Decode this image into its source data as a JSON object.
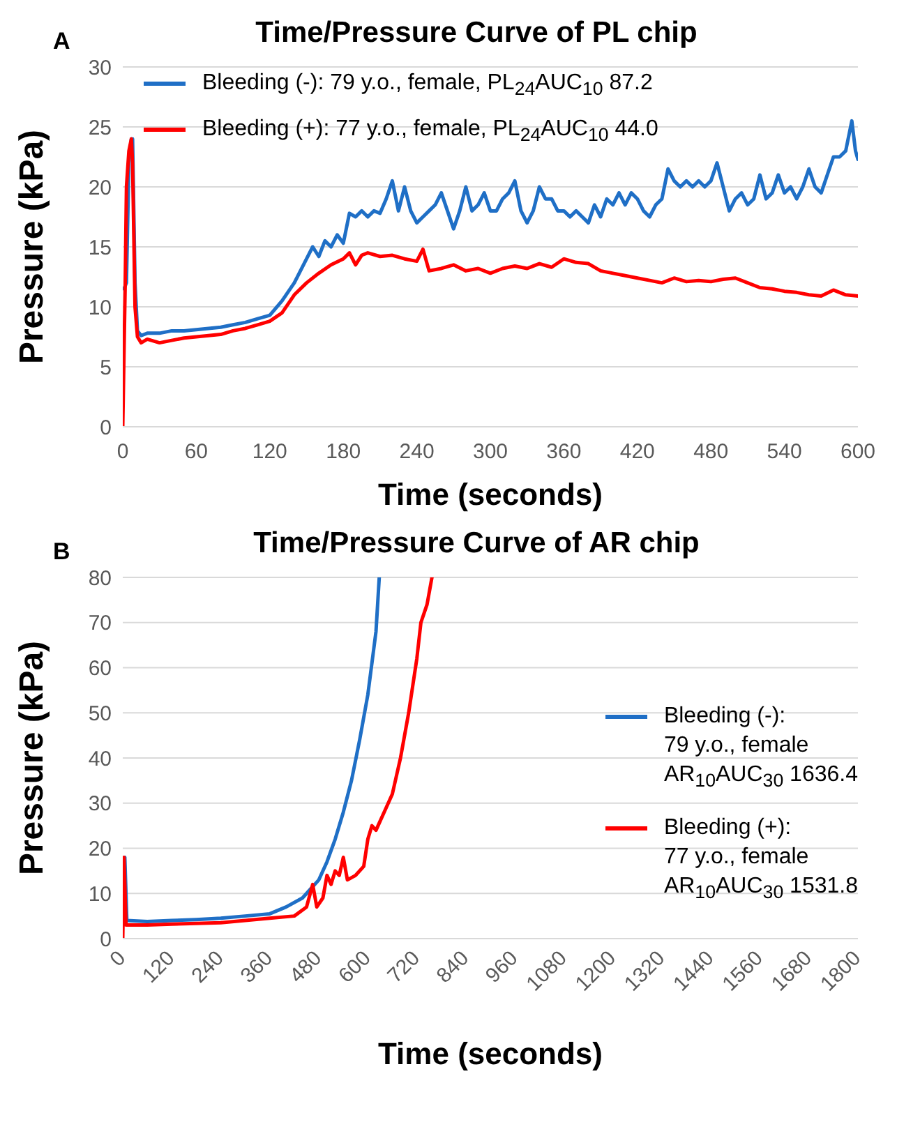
{
  "chart_data": [
    {
      "type": "line",
      "title": "Time/Pressure Curve of PL chip",
      "xlabel": "Time (seconds)",
      "ylabel": "Pressure (kPa)",
      "annotations": [
        "A"
      ],
      "xlim": [
        0,
        600
      ],
      "xticks": [
        0,
        60,
        120,
        180,
        240,
        300,
        360,
        420,
        480,
        540,
        600
      ],
      "ylim": [
        0,
        30
      ],
      "yticks": [
        0,
        5,
        10,
        15,
        20,
        25,
        30
      ],
      "grid": "y",
      "legend": "top",
      "series": [
        {
          "name": "Bleeding (-): 79 y.o., female, PL$_{24}$AUC$_{10}$ 87.2",
          "color": "#1f6fc6",
          "x": [
            1,
            3,
            5,
            7,
            8,
            10,
            12,
            15,
            20,
            30,
            40,
            50,
            60,
            70,
            80,
            90,
            100,
            110,
            120,
            130,
            140,
            150,
            155,
            160,
            165,
            170,
            175,
            180,
            185,
            190,
            195,
            200,
            205,
            210,
            215,
            220,
            225,
            230,
            235,
            240,
            245,
            250,
            255,
            260,
            265,
            270,
            275,
            280,
            285,
            290,
            295,
            300,
            305,
            310,
            315,
            320,
            325,
            330,
            335,
            340,
            345,
            350,
            355,
            360,
            365,
            370,
            375,
            380,
            385,
            390,
            395,
            400,
            405,
            410,
            415,
            420,
            425,
            430,
            435,
            440,
            445,
            450,
            455,
            460,
            465,
            470,
            475,
            480,
            485,
            490,
            495,
            500,
            505,
            510,
            515,
            520,
            525,
            530,
            535,
            540,
            545,
            550,
            555,
            560,
            565,
            570,
            575,
            580,
            585,
            590,
            595,
            598,
            600
          ],
          "values": [
            11.5,
            12,
            22,
            24,
            24,
            12,
            8,
            7.6,
            7.8,
            7.8,
            8,
            8,
            8.1,
            8.2,
            8.3,
            8.5,
            8.7,
            9,
            9.3,
            10.5,
            12,
            14,
            15,
            14.2,
            15.5,
            15,
            16,
            15.3,
            17.8,
            17.5,
            18,
            17.5,
            18,
            17.8,
            19,
            20.5,
            18,
            20,
            18,
            17,
            17.5,
            18,
            18.5,
            19.5,
            18,
            16.5,
            18,
            20,
            18,
            18.5,
            19.5,
            18,
            18,
            19,
            19.5,
            20.5,
            18,
            17,
            18,
            20,
            19,
            19,
            18,
            18,
            17.5,
            18,
            17.5,
            17,
            18.5,
            17.5,
            19,
            18.5,
            19.5,
            18.5,
            19.5,
            19,
            18,
            17.5,
            18.5,
            19,
            21.5,
            20.5,
            20,
            20.5,
            20,
            20.5,
            20,
            20.5,
            22,
            20,
            18,
            19,
            19.5,
            18.5,
            19,
            21,
            19,
            19.5,
            21,
            19.5,
            20,
            19,
            20,
            21.5,
            20,
            19.5,
            21,
            22.5,
            22.5,
            23,
            25.5,
            23,
            22.3
          ]
        },
        {
          "name": "Bleeding (+): 77 y.o., female, PL$_{24}$AUC$_{10}$ 44.0",
          "color": "#ff0000",
          "x": [
            0,
            2,
            3,
            5,
            7,
            8,
            10,
            12,
            15,
            20,
            30,
            40,
            50,
            60,
            70,
            80,
            90,
            100,
            110,
            120,
            130,
            140,
            150,
            160,
            170,
            180,
            185,
            190,
            195,
            200,
            210,
            220,
            230,
            240,
            245,
            250,
            260,
            270,
            280,
            290,
            300,
            310,
            320,
            330,
            340,
            350,
            360,
            370,
            380,
            390,
            400,
            410,
            420,
            430,
            440,
            450,
            460,
            470,
            480,
            490,
            500,
            510,
            520,
            530,
            540,
            550,
            560,
            570,
            580,
            590,
            600
          ],
          "values": [
            0,
            12,
            20,
            23,
            24,
            22,
            10,
            7.5,
            7,
            7.3,
            7,
            7.2,
            7.4,
            7.5,
            7.6,
            7.7,
            8,
            8.2,
            8.5,
            8.8,
            9.5,
            11,
            12,
            12.8,
            13.5,
            14,
            14.5,
            13.5,
            14.3,
            14.5,
            14.2,
            14.3,
            14,
            13.8,
            14.8,
            13,
            13.2,
            13.5,
            13,
            13.2,
            12.8,
            13.2,
            13.4,
            13.2,
            13.6,
            13.3,
            14,
            13.7,
            13.6,
            13,
            12.8,
            12.6,
            12.4,
            12.2,
            12,
            12.4,
            12.1,
            12.2,
            12.1,
            12.3,
            12.4,
            12,
            11.6,
            11.5,
            11.3,
            11.2,
            11,
            10.9,
            11.4,
            11,
            10.9
          ]
        }
      ]
    },
    {
      "type": "line",
      "title": "Time/Pressure Curve of AR chip",
      "xlabel": "Time (seconds)",
      "ylabel": "Pressure (kPa)",
      "annotations": [
        "B"
      ],
      "xlim": [
        0,
        1800
      ],
      "xticks": [
        0,
        120,
        240,
        360,
        480,
        600,
        720,
        840,
        960,
        1080,
        1200,
        1320,
        1440,
        1560,
        1680,
        1800
      ],
      "ylim": [
        0,
        80
      ],
      "yticks": [
        0,
        10,
        20,
        30,
        40,
        50,
        60,
        70,
        80
      ],
      "grid": "y",
      "legend": "right",
      "series": [
        {
          "name": "Bleeding (-):\n79 y.o., female\nAR$_{10}$AUC$_{30}$ 1636.4",
          "color": "#1f6fc6",
          "x": [
            5,
            10,
            60,
            120,
            180,
            240,
            300,
            360,
            400,
            440,
            460,
            480,
            500,
            520,
            540,
            560,
            580,
            600,
            620,
            628
          ],
          "values": [
            18,
            4,
            3.8,
            4,
            4.2,
            4.5,
            5,
            5.5,
            7,
            9,
            11,
            13,
            17,
            22,
            28,
            35,
            44,
            54,
            68,
            80
          ]
        },
        {
          "name": "Bleeding (+):\n77 y.o., female\nAR$_{10}$AUC$_{30}$ 1531.8",
          "color": "#ff0000",
          "x": [
            0,
            3,
            8,
            60,
            120,
            240,
            300,
            360,
            420,
            450,
            465,
            475,
            490,
            500,
            510,
            520,
            530,
            540,
            550,
            570,
            590,
            600,
            610,
            620,
            640,
            660,
            680,
            700,
            720,
            730,
            745,
            757
          ],
          "values": [
            0,
            18,
            3,
            3,
            3.2,
            3.5,
            4,
            4.5,
            5,
            7,
            12,
            7,
            9,
            14,
            12,
            15,
            14,
            18,
            13,
            14,
            16,
            22,
            25,
            24,
            28,
            32,
            40,
            50,
            62,
            70,
            74,
            80
          ]
        }
      ]
    }
  ]
}
